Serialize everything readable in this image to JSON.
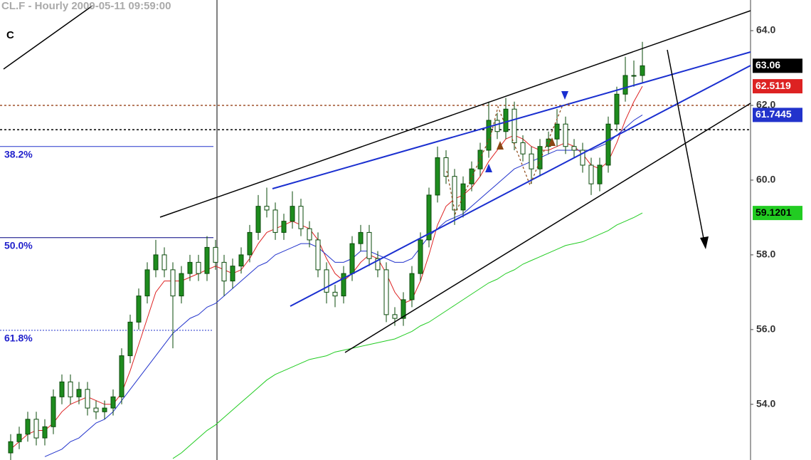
{
  "chart_data": {
    "type": "candlestick",
    "title": "CL.F - Hourly 2009-05-11 09:59:00",
    "corner_label": "C",
    "ylim": [
      52.51,
      64.82
    ],
    "yticks": [
      {
        "value": 64,
        "label": "64.0"
      },
      {
        "value": 62,
        "label": "62.0"
      },
      {
        "value": 60,
        "label": "60.0"
      },
      {
        "value": 58,
        "label": "58.0"
      },
      {
        "value": 56,
        "label": "56.0"
      },
      {
        "value": 54,
        "label": "54.0"
      }
    ],
    "up_color": "#1e8c1e",
    "down_color": "#ffffff",
    "open": [
      52.7,
      53.0,
      53.2,
      53.6,
      53.1,
      53.4,
      54.2,
      54.6,
      54.2,
      54.4,
      53.9,
      53.8,
      53.9,
      54.2,
      55.3,
      56.2,
      56.9,
      57.6,
      58.0,
      57.6,
      56.9,
      57.5,
      57.8,
      57.5,
      58.2,
      57.8,
      57.3,
      57.7,
      58.0,
      58.6,
      59.3,
      59.2,
      58.6,
      58.9,
      59.3,
      58.7,
      58.4,
      57.6,
      57.0,
      56.9,
      57.5,
      58.3,
      58.6,
      57.9,
      57.6,
      56.4,
      56.3,
      56.8,
      57.5,
      58.4,
      59.6,
      60.6,
      60.1,
      59.2,
      59.9,
      60.3,
      60.8,
      61.6,
      61.3,
      61.9,
      61.0,
      60.7,
      60.3,
      60.9,
      61.1,
      61.5,
      60.9,
      60.8,
      60.4,
      59.9,
      60.4,
      61.5,
      62.3,
      62.8,
      62.8
    ],
    "high": [
      53.2,
      53.4,
      53.8,
      53.8,
      53.6,
      54.4,
      54.8,
      54.8,
      54.6,
      54.6,
      54.1,
      54.1,
      54.4,
      55.5,
      56.4,
      57.1,
      57.8,
      58.4,
      58.2,
      57.8,
      57.7,
      58.0,
      58.0,
      58.5,
      58.4,
      58.0,
      57.9,
      58.2,
      58.8,
      59.6,
      59.8,
      59.4,
      59.1,
      59.7,
      59.5,
      58.9,
      58.6,
      57.8,
      57.2,
      57.7,
      58.5,
      58.8,
      58.8,
      58.1,
      57.8,
      56.6,
      57.0,
      57.7,
      58.6,
      59.8,
      60.9,
      60.8,
      60.3,
      60.1,
      60.5,
      61.0,
      62.1,
      61.8,
      62.2,
      62.1,
      61.2,
      60.9,
      61.1,
      61.3,
      61.9,
      61.7,
      61.1,
      61.0,
      60.6,
      60.6,
      61.7,
      62.5,
      63.3,
      63.2,
      63.7
    ],
    "low": [
      52.5,
      52.8,
      53.0,
      52.9,
      52.9,
      53.2,
      54.0,
      54.0,
      54.0,
      53.7,
      53.6,
      53.6,
      53.7,
      54.0,
      55.1,
      56.0,
      56.7,
      57.4,
      57.4,
      55.5,
      56.7,
      57.3,
      57.3,
      57.3,
      57.6,
      56.9,
      57.1,
      57.5,
      57.8,
      58.4,
      59.0,
      58.4,
      58.4,
      58.7,
      58.5,
      58.2,
      57.4,
      56.7,
      56.6,
      56.7,
      57.3,
      58.1,
      57.7,
      57.4,
      56.2,
      56.1,
      56.1,
      56.6,
      57.3,
      58.2,
      59.4,
      59.9,
      58.8,
      59.0,
      59.7,
      60.1,
      60.6,
      61.1,
      61.1,
      60.8,
      60.5,
      59.9,
      60.1,
      60.7,
      60.9,
      60.7,
      60.6,
      60.2,
      59.6,
      59.7,
      60.2,
      61.3,
      62.1,
      62.5,
      62.6
    ],
    "close": [
      53.0,
      53.2,
      53.6,
      53.1,
      53.4,
      54.2,
      54.6,
      54.2,
      54.4,
      53.9,
      53.8,
      53.9,
      54.2,
      55.3,
      56.2,
      56.9,
      57.6,
      58.0,
      57.6,
      56.9,
      57.5,
      57.8,
      57.5,
      58.2,
      57.8,
      57.3,
      57.7,
      58.0,
      58.6,
      59.3,
      59.2,
      58.6,
      58.9,
      59.3,
      58.7,
      58.4,
      57.6,
      57.0,
      56.9,
      57.5,
      58.3,
      58.6,
      57.9,
      57.6,
      56.4,
      56.3,
      56.8,
      57.5,
      58.4,
      59.6,
      60.6,
      60.1,
      59.2,
      59.9,
      60.3,
      60.8,
      61.6,
      61.3,
      61.9,
      61.0,
      60.7,
      60.3,
      60.9,
      61.1,
      61.5,
      60.9,
      60.8,
      60.4,
      59.9,
      60.4,
      61.5,
      62.3,
      62.8,
      62.8,
      63.06
    ],
    "close_label_color": "#000000",
    "moving_averages": [
      {
        "color": "#dd2222",
        "values": [
          52.8,
          53.0,
          53.2,
          53.3,
          53.3,
          53.5,
          53.8,
          54.0,
          54.1,
          54.2,
          54.1,
          54.0,
          54.0,
          54.3,
          54.9,
          55.6,
          56.3,
          57.0,
          57.3,
          57.3,
          57.3,
          57.4,
          57.5,
          57.6,
          57.7,
          57.6,
          57.5,
          57.6,
          57.9,
          58.3,
          58.6,
          58.7,
          58.8,
          58.9,
          58.8,
          58.7,
          58.4,
          57.9,
          57.5,
          57.3,
          57.5,
          57.8,
          58.0,
          57.9,
          57.5,
          57.0,
          56.7,
          56.8,
          57.3,
          58.0,
          58.8,
          59.3,
          59.5,
          59.6,
          59.8,
          60.1,
          60.5,
          60.8,
          61.1,
          61.2,
          61.1,
          60.9,
          60.8,
          60.8,
          60.9,
          61.0,
          60.9,
          60.7,
          60.4,
          60.3,
          60.5,
          61.0,
          61.6,
          62.1,
          62.5119
        ]
      },
      {
        "color": "#2233cc",
        "values": [
          null,
          null,
          null,
          null,
          52.6,
          52.7,
          52.8,
          53.0,
          53.1,
          53.3,
          53.5,
          53.6,
          53.8,
          54.1,
          54.4,
          54.7,
          55.0,
          55.3,
          55.6,
          55.9,
          56.1,
          56.3,
          56.4,
          56.6,
          56.7,
          56.9,
          57.1,
          57.3,
          57.5,
          57.7,
          57.8,
          58.0,
          58.1,
          58.2,
          58.3,
          58.3,
          58.2,
          58.0,
          57.8,
          57.8,
          57.9,
          58.1,
          58.1,
          58.0,
          57.9,
          57.8,
          57.8,
          57.9,
          58.2,
          58.5,
          58.7,
          58.9,
          59.0,
          59.1,
          59.3,
          59.5,
          59.7,
          59.9,
          60.1,
          60.3,
          60.4,
          60.5,
          60.6,
          60.7,
          60.8,
          60.8,
          60.8,
          60.8,
          60.8,
          60.9,
          61.0,
          61.2,
          61.4,
          61.6,
          61.7445
        ]
      },
      {
        "color": "#22cc22",
        "values": [
          null,
          null,
          null,
          null,
          null,
          null,
          null,
          null,
          null,
          null,
          null,
          null,
          null,
          null,
          null,
          null,
          null,
          null,
          null,
          52.55,
          52.7,
          52.9,
          53.1,
          53.3,
          53.45,
          53.65,
          53.85,
          54.05,
          54.25,
          54.45,
          54.65,
          54.8,
          54.9,
          55.0,
          55.1,
          55.2,
          55.25,
          55.3,
          55.4,
          55.45,
          55.5,
          55.55,
          55.6,
          55.65,
          55.7,
          55.75,
          55.85,
          55.95,
          56.1,
          56.2,
          56.35,
          56.5,
          56.65,
          56.8,
          56.95,
          57.1,
          57.25,
          57.35,
          57.5,
          57.6,
          57.75,
          57.85,
          57.95,
          58.05,
          58.15,
          58.25,
          58.3,
          58.35,
          58.45,
          58.55,
          58.65,
          58.8,
          58.9,
          59.0,
          59.1201
        ]
      }
    ],
    "levels": [
      {
        "value": 62.0,
        "color": "#a0522d"
      },
      {
        "value": 61.35,
        "color": "#000000"
      }
    ],
    "fib_levels": [
      {
        "label": "38.2%",
        "value": 60.9,
        "color": "#2233cc",
        "dashed": false
      },
      {
        "label": "50.0%",
        "value": 58.46,
        "color": "#000080",
        "dashed": false
      },
      {
        "label": "61.8%",
        "value": 55.98,
        "color": "#2233cc",
        "dashed": true
      }
    ]
  }
}
